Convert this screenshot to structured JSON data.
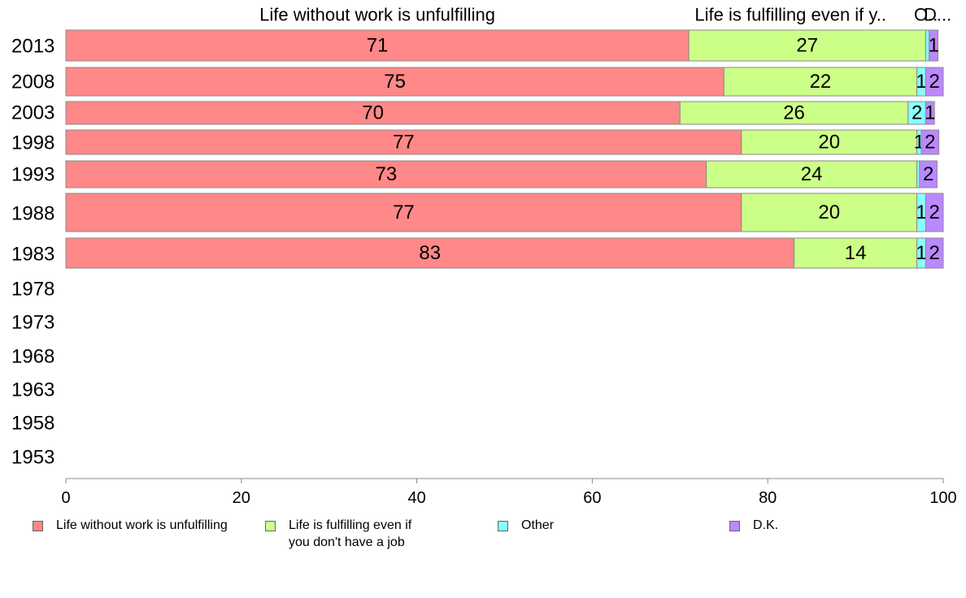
{
  "chart_data": {
    "type": "bar",
    "orientation": "horizontal",
    "stacked": true,
    "categories": [
      "2013",
      "2008",
      "2003",
      "1998",
      "1993",
      "1988",
      "1983",
      "1978",
      "1973",
      "1968",
      "1963",
      "1958",
      "1953"
    ],
    "series": [
      {
        "name": "Life without work is unfulfilling",
        "color": "#ff8888",
        "values": [
          71,
          75,
          70,
          77,
          73,
          77,
          83,
          null,
          null,
          null,
          null,
          null,
          null
        ]
      },
      {
        "name": "Life is fulfilling even if you don't have a job",
        "color": "#ccff88",
        "values": [
          27,
          22,
          26,
          20,
          24,
          20,
          14,
          null,
          null,
          null,
          null,
          null,
          null
        ]
      },
      {
        "name": "Other",
        "color": "#88ffff",
        "values": [
          0.4,
          1,
          2,
          0.5,
          0.3,
          1,
          1,
          null,
          null,
          null,
          null,
          null,
          null
        ]
      },
      {
        "name": "D.K.",
        "color": "#bb88ff",
        "values": [
          1,
          2,
          1,
          2,
          2,
          2,
          2,
          null,
          null,
          null,
          null,
          null,
          null
        ]
      }
    ],
    "value_labels": {
      "Life without work is unfulfilling": [
        "71",
        "75",
        "70",
        "77",
        "73",
        "77",
        "83"
      ],
      "Life is fulfilling even if you don't have a job": [
        "27",
        "22",
        "26",
        "20",
        "24",
        "20",
        "14"
      ],
      "Other": [
        "",
        "1",
        "2",
        "1",
        "",
        "1",
        "1"
      ],
      "D.K.": [
        "1",
        "2",
        "1",
        "2",
        "2",
        "2",
        "2"
      ]
    },
    "top_labels": [
      "Life without work is unfulfilling",
      "Life is fulfilling even if y..",
      "O..",
      "D..."
    ],
    "x_ticks": [
      0,
      20,
      40,
      60,
      80,
      100
    ],
    "xlim": [
      0,
      100
    ],
    "title": "",
    "xlabel": "",
    "ylabel": "",
    "grid": false,
    "legend_position": "bottom"
  },
  "legend": {
    "items": [
      {
        "label": "Life without work is unfulfilling",
        "color": "#ff8888"
      },
      {
        "label": "Life is fulfilling even if\nyou don't have a job",
        "color": "#ccff88"
      },
      {
        "label": "Other",
        "color": "#88ffff"
      },
      {
        "label": "D.K.",
        "color": "#bb88ff"
      }
    ]
  }
}
